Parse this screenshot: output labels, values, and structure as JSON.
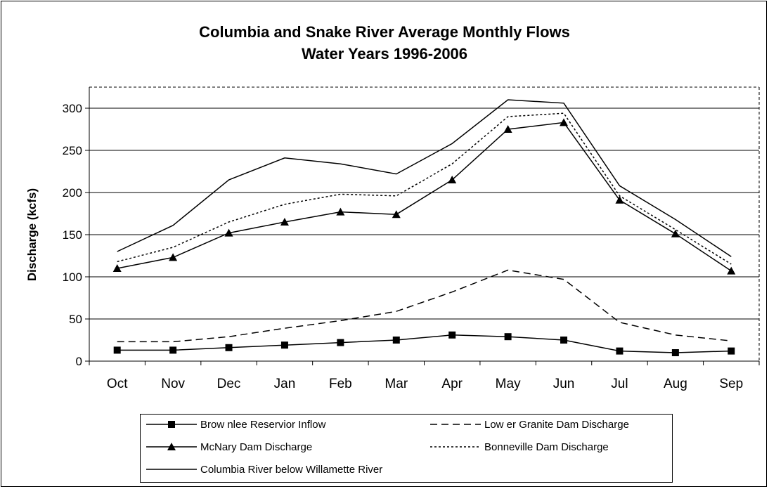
{
  "chart_data": {
    "type": "line",
    "title": "Columbia and Snake River Average Monthly Flows",
    "subtitle": "Water Years 1996-2006",
    "xlabel": "",
    "ylabel": "Discharge (kcfs)",
    "ylim": [
      0,
      325
    ],
    "yticks": [
      0,
      50,
      100,
      150,
      200,
      250,
      300
    ],
    "grid": true,
    "legend_position": "bottom",
    "categories": [
      "Oct",
      "Nov",
      "Dec",
      "Jan",
      "Feb",
      "Mar",
      "Apr",
      "May",
      "Jun",
      "Jul",
      "Aug",
      "Sep"
    ],
    "series": [
      {
        "name": "Brow nlee Reservior Inflow",
        "style": "solid",
        "marker": "square",
        "color": "#000000",
        "values": [
          13,
          13,
          16,
          19,
          22,
          25,
          31,
          29,
          25,
          12,
          10,
          12
        ]
      },
      {
        "name": "Low er Granite Dam Discharge",
        "style": "dashed",
        "marker": "none",
        "color": "#000000",
        "values": [
          23,
          23,
          29,
          39,
          48,
          59,
          82,
          108,
          97,
          46,
          31,
          24
        ]
      },
      {
        "name": "McNary Dam Discharge",
        "style": "solid",
        "marker": "triangle",
        "color": "#000000",
        "values": [
          110,
          123,
          152,
          165,
          177,
          174,
          215,
          275,
          283,
          191,
          151,
          107
        ]
      },
      {
        "name": "Bonneville Dam Discharge",
        "style": "dotted",
        "marker": "none",
        "color": "#000000",
        "values": [
          118,
          135,
          165,
          186,
          198,
          196,
          234,
          290,
          294,
          196,
          156,
          115
        ]
      },
      {
        "name": "Columbia River below Willamette River",
        "style": "solid",
        "marker": "none",
        "color": "#000000",
        "values": [
          130,
          161,
          215,
          241,
          234,
          222,
          258,
          310,
          306,
          208,
          168,
          124
        ]
      }
    ]
  }
}
